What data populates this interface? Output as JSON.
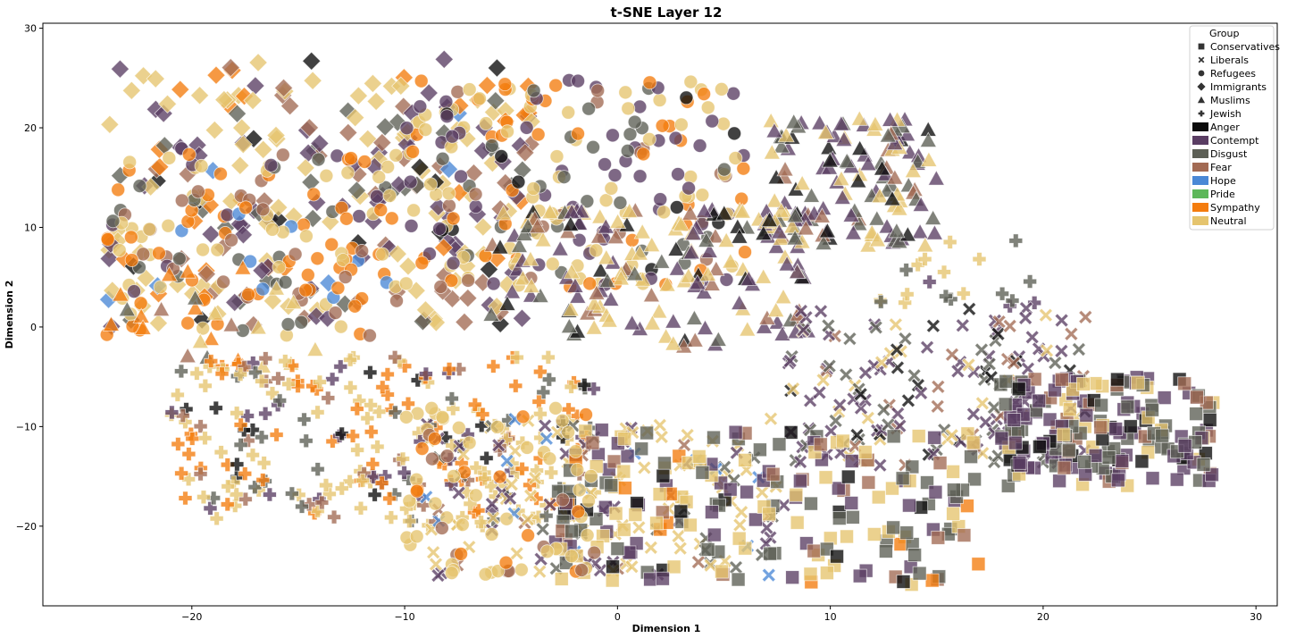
{
  "chart_data": {
    "type": "scatter",
    "title": "t-SNE Layer 12",
    "xlabel": "Dimension 1",
    "ylabel": "Dimension 2",
    "xlim": [
      -27,
      31
    ],
    "ylim": [
      -28,
      30.5
    ],
    "xticks": [
      -20,
      -10,
      0,
      10,
      20,
      30
    ],
    "yticks": [
      -20,
      -10,
      0,
      10,
      20,
      30
    ],
    "xtick_labels": [
      "−20",
      "−10",
      "0",
      "10",
      "20",
      "30"
    ],
    "ytick_labels": [
      "−20",
      "−10",
      "0",
      "10",
      "20",
      "30"
    ],
    "grid": false,
    "legend": {
      "placement": "top-right",
      "group_title": "Group",
      "groups": [
        {
          "name": "Conservatives",
          "marker": "square"
        },
        {
          "name": "Liberals",
          "marker": "x"
        },
        {
          "name": "Refugees",
          "marker": "circle"
        },
        {
          "name": "Immigrants",
          "marker": "diamond"
        },
        {
          "name": "Muslims",
          "marker": "triangle"
        },
        {
          "name": "Jewish",
          "marker": "plus"
        }
      ],
      "emotions": [
        {
          "name": "Anger",
          "color": "#0b0b0b"
        },
        {
          "name": "Contempt",
          "color": "#5a3d63"
        },
        {
          "name": "Disgust",
          "color": "#5c5f55"
        },
        {
          "name": "Fear",
          "color": "#a26a53"
        },
        {
          "name": "Hope",
          "color": "#4a88d6"
        },
        {
          "name": "Pride",
          "color": "#5db75a"
        },
        {
          "name": "Sympathy",
          "color": "#f47c0e"
        },
        {
          "name": "Neutral",
          "color": "#e5c46e"
        }
      ]
    },
    "clusters": [
      {
        "group": "Immigrants",
        "x": [
          -24,
          -4
        ],
        "y": [
          0,
          27
        ],
        "n": 260,
        "weights": {
          "Neutral": 0.35,
          "Contempt": 0.2,
          "Fear": 0.15,
          "Sympathy": 0.12,
          "Disgust": 0.1,
          "Anger": 0.05,
          "Hope": 0.03
        }
      },
      {
        "group": "Refugees",
        "x": [
          -24,
          -10
        ],
        "y": [
          -1,
          18
        ],
        "n": 150,
        "weights": {
          "Sympathy": 0.3,
          "Neutral": 0.3,
          "Fear": 0.15,
          "Contempt": 0.1,
          "Disgust": 0.1,
          "Hope": 0.05
        }
      },
      {
        "group": "Refugees",
        "x": [
          -10,
          6
        ],
        "y": [
          4,
          25
        ],
        "n": 220,
        "weights": {
          "Neutral": 0.3,
          "Contempt": 0.25,
          "Disgust": 0.15,
          "Sympathy": 0.15,
          "Fear": 0.1,
          "Anger": 0.05
        }
      },
      {
        "group": "Muslims",
        "x": [
          7,
          15
        ],
        "y": [
          8,
          21
        ],
        "n": 140,
        "weights": {
          "Contempt": 0.35,
          "Disgust": 0.25,
          "Neutral": 0.2,
          "Fear": 0.1,
          "Anger": 0.1
        }
      },
      {
        "group": "Muslims",
        "x": [
          -6,
          9
        ],
        "y": [
          -2,
          12
        ],
        "n": 170,
        "weights": {
          "Neutral": 0.35,
          "Contempt": 0.25,
          "Disgust": 0.15,
          "Fear": 0.15,
          "Anger": 0.1
        }
      },
      {
        "group": "Muslims",
        "x": [
          -24,
          -14
        ],
        "y": [
          -4,
          6
        ],
        "n": 25,
        "weights": {
          "Sympathy": 0.4,
          "Neutral": 0.3,
          "Disgust": 0.2,
          "Fear": 0.1
        }
      },
      {
        "group": "Jewish",
        "x": [
          -21,
          -1
        ],
        "y": [
          -20,
          -3
        ],
        "n": 260,
        "weights": {
          "Neutral": 0.35,
          "Sympathy": 0.3,
          "Contempt": 0.12,
          "Disgust": 0.1,
          "Fear": 0.08,
          "Anger": 0.05
        }
      },
      {
        "group": "Jewish",
        "x": [
          12,
          20
        ],
        "y": [
          2,
          9
        ],
        "n": 20,
        "weights": {
          "Neutral": 0.5,
          "Contempt": 0.3,
          "Disgust": 0.2
        }
      },
      {
        "group": "Liberals",
        "x": [
          8,
          22
        ],
        "y": [
          -14,
          2
        ],
        "n": 170,
        "weights": {
          "Contempt": 0.4,
          "Disgust": 0.25,
          "Neutral": 0.15,
          "Fear": 0.1,
          "Anger": 0.1
        }
      },
      {
        "group": "Liberals",
        "x": [
          -9,
          8
        ],
        "y": [
          -25,
          -9
        ],
        "n": 140,
        "weights": {
          "Neutral": 0.45,
          "Contempt": 0.2,
          "Disgust": 0.15,
          "Hope": 0.1,
          "Fear": 0.1
        }
      },
      {
        "group": "Conservatives",
        "x": [
          -3,
          17
        ],
        "y": [
          -26,
          -10
        ],
        "n": 210,
        "weights": {
          "Disgust": 0.3,
          "Contempt": 0.25,
          "Neutral": 0.25,
          "Fear": 0.1,
          "Anger": 0.05,
          "Sympathy": 0.05
        }
      },
      {
        "group": "Conservatives",
        "x": [
          18,
          28
        ],
        "y": [
          -16,
          -5
        ],
        "n": 190,
        "weights": {
          "Contempt": 0.35,
          "Disgust": 0.35,
          "Anger": 0.1,
          "Neutral": 0.1,
          "Fear": 0.1
        }
      },
      {
        "group": "Refugees",
        "x": [
          -10,
          -1
        ],
        "y": [
          -25,
          -8
        ],
        "n": 70,
        "weights": {
          "Neutral": 0.7,
          "Sympathy": 0.15,
          "Fear": 0.15
        }
      }
    ]
  }
}
